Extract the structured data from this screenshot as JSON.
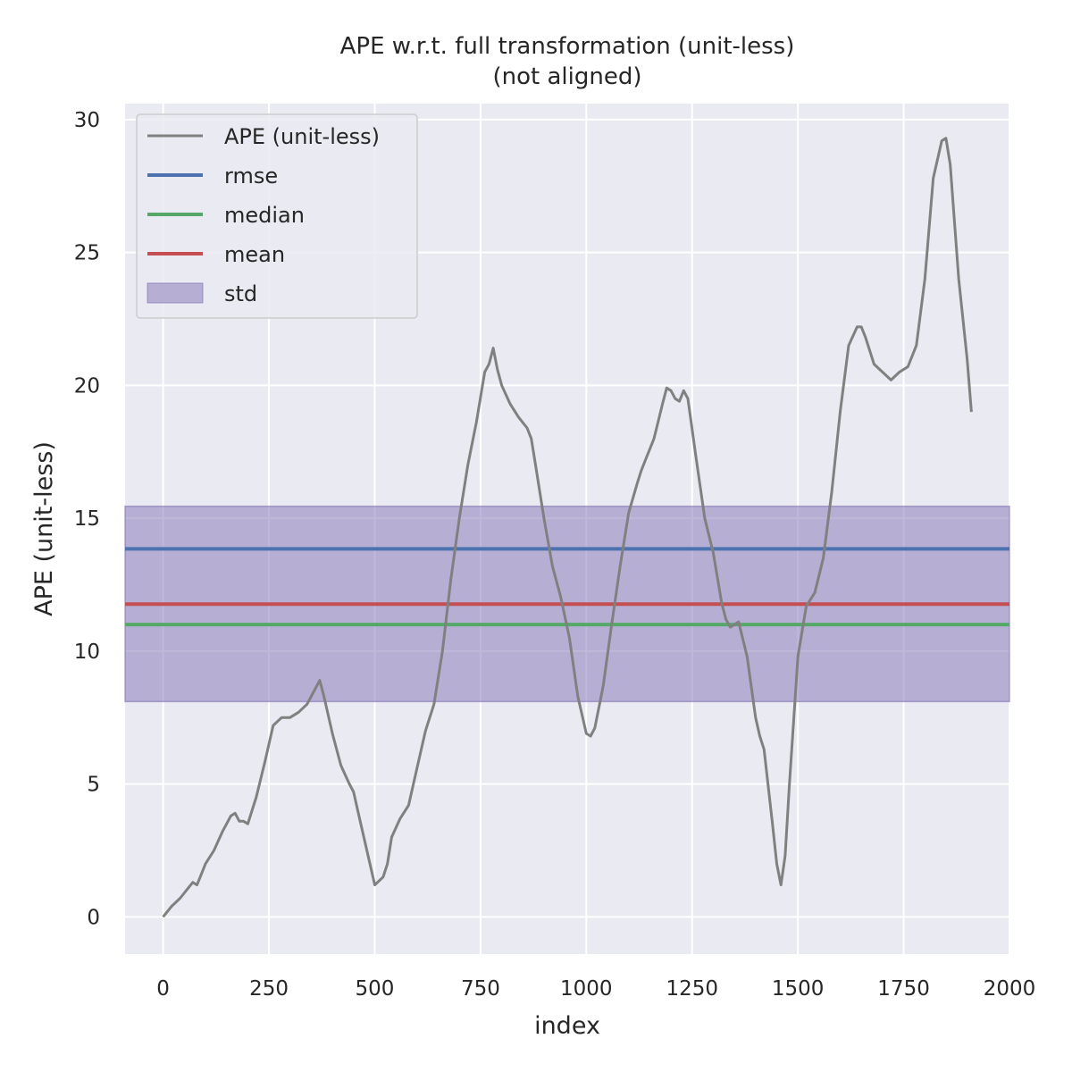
{
  "chart_data": {
    "type": "line",
    "title": "APE w.r.t. full transformation (unit-less)",
    "subtitle": "(not aligned)",
    "xlabel": "index",
    "ylabel": "APE (unit-less)",
    "xlim": [
      -90,
      2000
    ],
    "ylim": [
      -1.4,
      30.6
    ],
    "xticks": [
      0,
      250,
      500,
      750,
      1000,
      1250,
      1500,
      1750,
      2000
    ],
    "yticks": [
      0,
      5,
      10,
      15,
      20,
      25,
      30
    ],
    "grid": true,
    "legend_position": "top-left",
    "colors": {
      "background": "#eaeaf2",
      "grid": "#ffffff",
      "ape": "#808080",
      "rmse": "#4c72b0",
      "median": "#55a868",
      "mean": "#c44e52",
      "std": "#8172b3"
    },
    "series": [
      {
        "name": "APE (unit-less)",
        "x": [
          0,
          20,
          40,
          60,
          70,
          80,
          90,
          100,
          120,
          140,
          160,
          170,
          180,
          190,
          200,
          220,
          240,
          260,
          280,
          300,
          320,
          340,
          360,
          370,
          380,
          400,
          420,
          440,
          450,
          460,
          480,
          500,
          520,
          530,
          540,
          560,
          580,
          600,
          620,
          640,
          660,
          680,
          700,
          720,
          740,
          760,
          770,
          780,
          790,
          800,
          820,
          840,
          860,
          870,
          880,
          900,
          920,
          940,
          960,
          980,
          1000,
          1010,
          1020,
          1040,
          1060,
          1080,
          1100,
          1120,
          1130,
          1140,
          1160,
          1180,
          1190,
          1200,
          1210,
          1220,
          1230,
          1240,
          1260,
          1280,
          1300,
          1320,
          1330,
          1340,
          1360,
          1380,
          1400,
          1410,
          1420,
          1440,
          1450,
          1460,
          1470,
          1480,
          1500,
          1520,
          1540,
          1560,
          1580,
          1600,
          1620,
          1640,
          1650,
          1660,
          1680,
          1700,
          1720,
          1740,
          1760,
          1780,
          1800,
          1820,
          1840,
          1850,
          1860,
          1880,
          1900,
          1910
        ],
        "values": [
          0.0,
          0.4,
          0.7,
          1.1,
          1.3,
          1.2,
          1.6,
          2.0,
          2.5,
          3.2,
          3.8,
          3.9,
          3.6,
          3.6,
          3.5,
          4.5,
          5.8,
          7.2,
          7.5,
          7.5,
          7.7,
          8.0,
          8.6,
          8.9,
          8.3,
          6.9,
          5.7,
          5.0,
          4.7,
          4.0,
          2.6,
          1.2,
          1.5,
          2.0,
          3.0,
          3.7,
          4.2,
          5.6,
          7.0,
          8.0,
          10.0,
          12.7,
          15.0,
          17.0,
          18.6,
          20.5,
          20.8,
          21.4,
          20.6,
          20.0,
          19.3,
          18.8,
          18.4,
          18.0,
          17.0,
          15.0,
          13.2,
          12.0,
          10.5,
          8.3,
          6.9,
          6.8,
          7.1,
          8.7,
          11.0,
          13.2,
          15.2,
          16.3,
          16.8,
          17.2,
          18.0,
          19.3,
          19.9,
          19.8,
          19.5,
          19.4,
          19.8,
          19.5,
          17.2,
          15.0,
          13.7,
          11.8,
          11.2,
          10.9,
          11.1,
          9.8,
          7.5,
          6.8,
          6.3,
          3.5,
          2.0,
          1.2,
          2.3,
          5.0,
          9.8,
          11.7,
          12.2,
          13.5,
          16.0,
          19.0,
          21.5,
          22.2,
          22.2,
          21.8,
          20.8,
          20.5,
          20.2,
          20.5,
          20.7,
          21.5,
          24.0,
          27.8,
          29.2,
          29.3,
          28.3,
          24.0,
          21.0,
          19.0
        ]
      }
    ],
    "stats": {
      "rmse": {
        "name": "rmse",
        "value": 13.85
      },
      "median": {
        "name": "median",
        "value": 11.0
      },
      "mean": {
        "name": "mean",
        "value": 11.77
      },
      "std": {
        "name": "std",
        "lower": 8.1,
        "upper": 15.45
      }
    },
    "legend": [
      "APE (unit-less)",
      "rmse",
      "median",
      "mean",
      "std"
    ]
  }
}
